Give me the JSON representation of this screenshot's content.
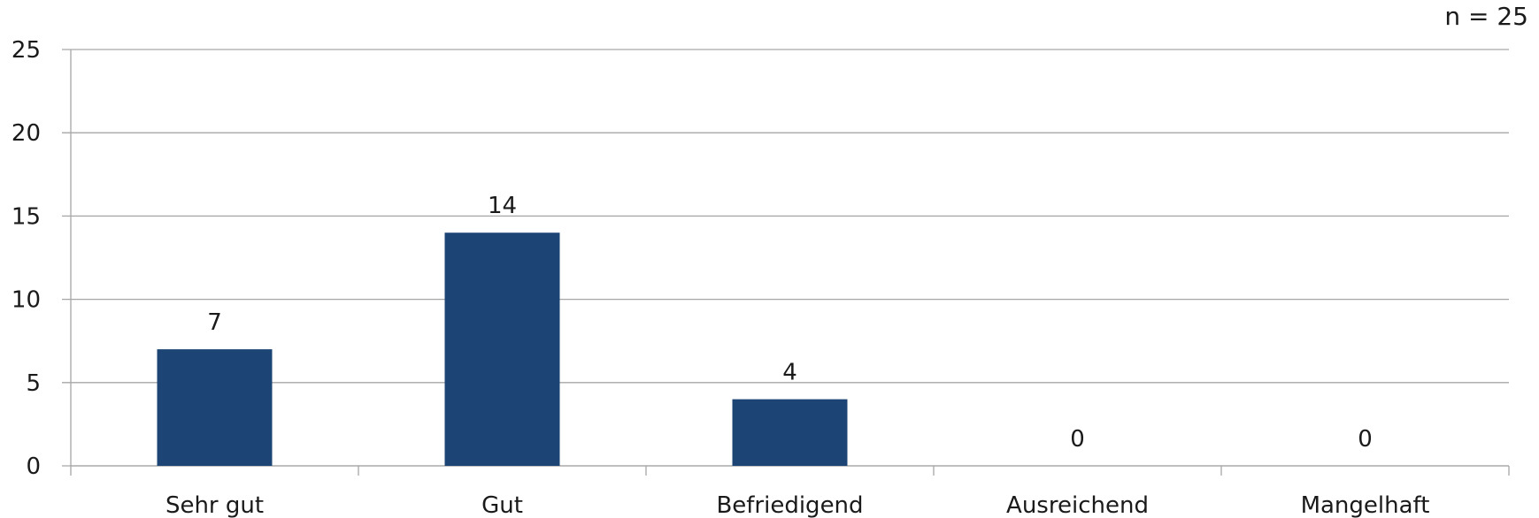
{
  "chart_data": {
    "type": "bar",
    "categories": [
      "Sehr gut",
      "Gut",
      "Befriedigend",
      "Ausreichend",
      "Mangelhaft"
    ],
    "values": [
      7,
      14,
      4,
      0,
      0
    ],
    "data_labels": [
      "7",
      "14",
      "4",
      "0",
      "0"
    ],
    "y_ticks": [
      "0",
      "5",
      "10",
      "15",
      "20",
      "25"
    ],
    "ylim": [
      0,
      25
    ],
    "grid": true,
    "legend": "none",
    "annotation": "n = 25",
    "bar_color": "#1c4474",
    "grid_color": "#a6a6a6",
    "title": "",
    "xlabel": "",
    "ylabel": ""
  }
}
